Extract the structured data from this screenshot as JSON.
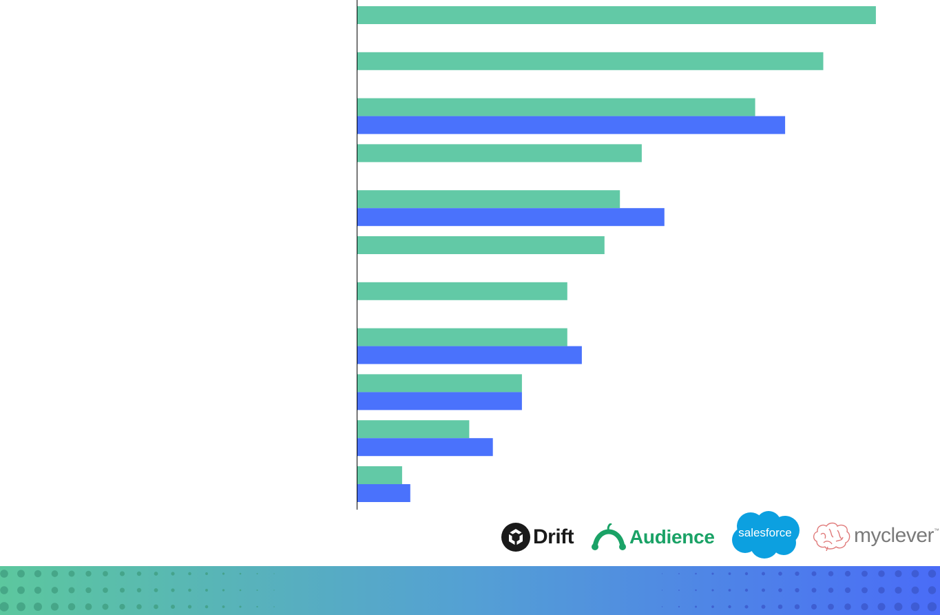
{
  "chart_data": {
    "type": "bar",
    "orientation": "horizontal",
    "categories": [
      "",
      "",
      "",
      "",
      "",
      "",
      "",
      "",
      "",
      "",
      ""
    ],
    "series": [
      {
        "values": [
          57.2,
          51.4,
          43.9,
          31.4,
          29.0,
          27.3,
          23.2,
          23.2,
          18.2,
          12.4,
          5.0
        ]
      },
      {
        "values": [
          null,
          null,
          47.2,
          null,
          33.9,
          null,
          null,
          24.8,
          18.2,
          15.0,
          5.9
        ]
      }
    ],
    "grid": false
  },
  "colors": {
    "series_1": "#62c9a6",
    "series_2": "#4a72fc",
    "axis": "#000000",
    "band_left": "#5cc79e",
    "band_right": "#4a6cf7"
  },
  "logos": {
    "drift": {
      "name": "Drift",
      "icon": "drift-icon"
    },
    "audience": {
      "name": "Audience",
      "icon": "sprout-icon"
    },
    "salesforce": {
      "name": "salesforce",
      "icon": "cloud-icon"
    },
    "myclever": {
      "name": "myclever",
      "icon": "brain-icon",
      "tm": "™"
    }
  }
}
